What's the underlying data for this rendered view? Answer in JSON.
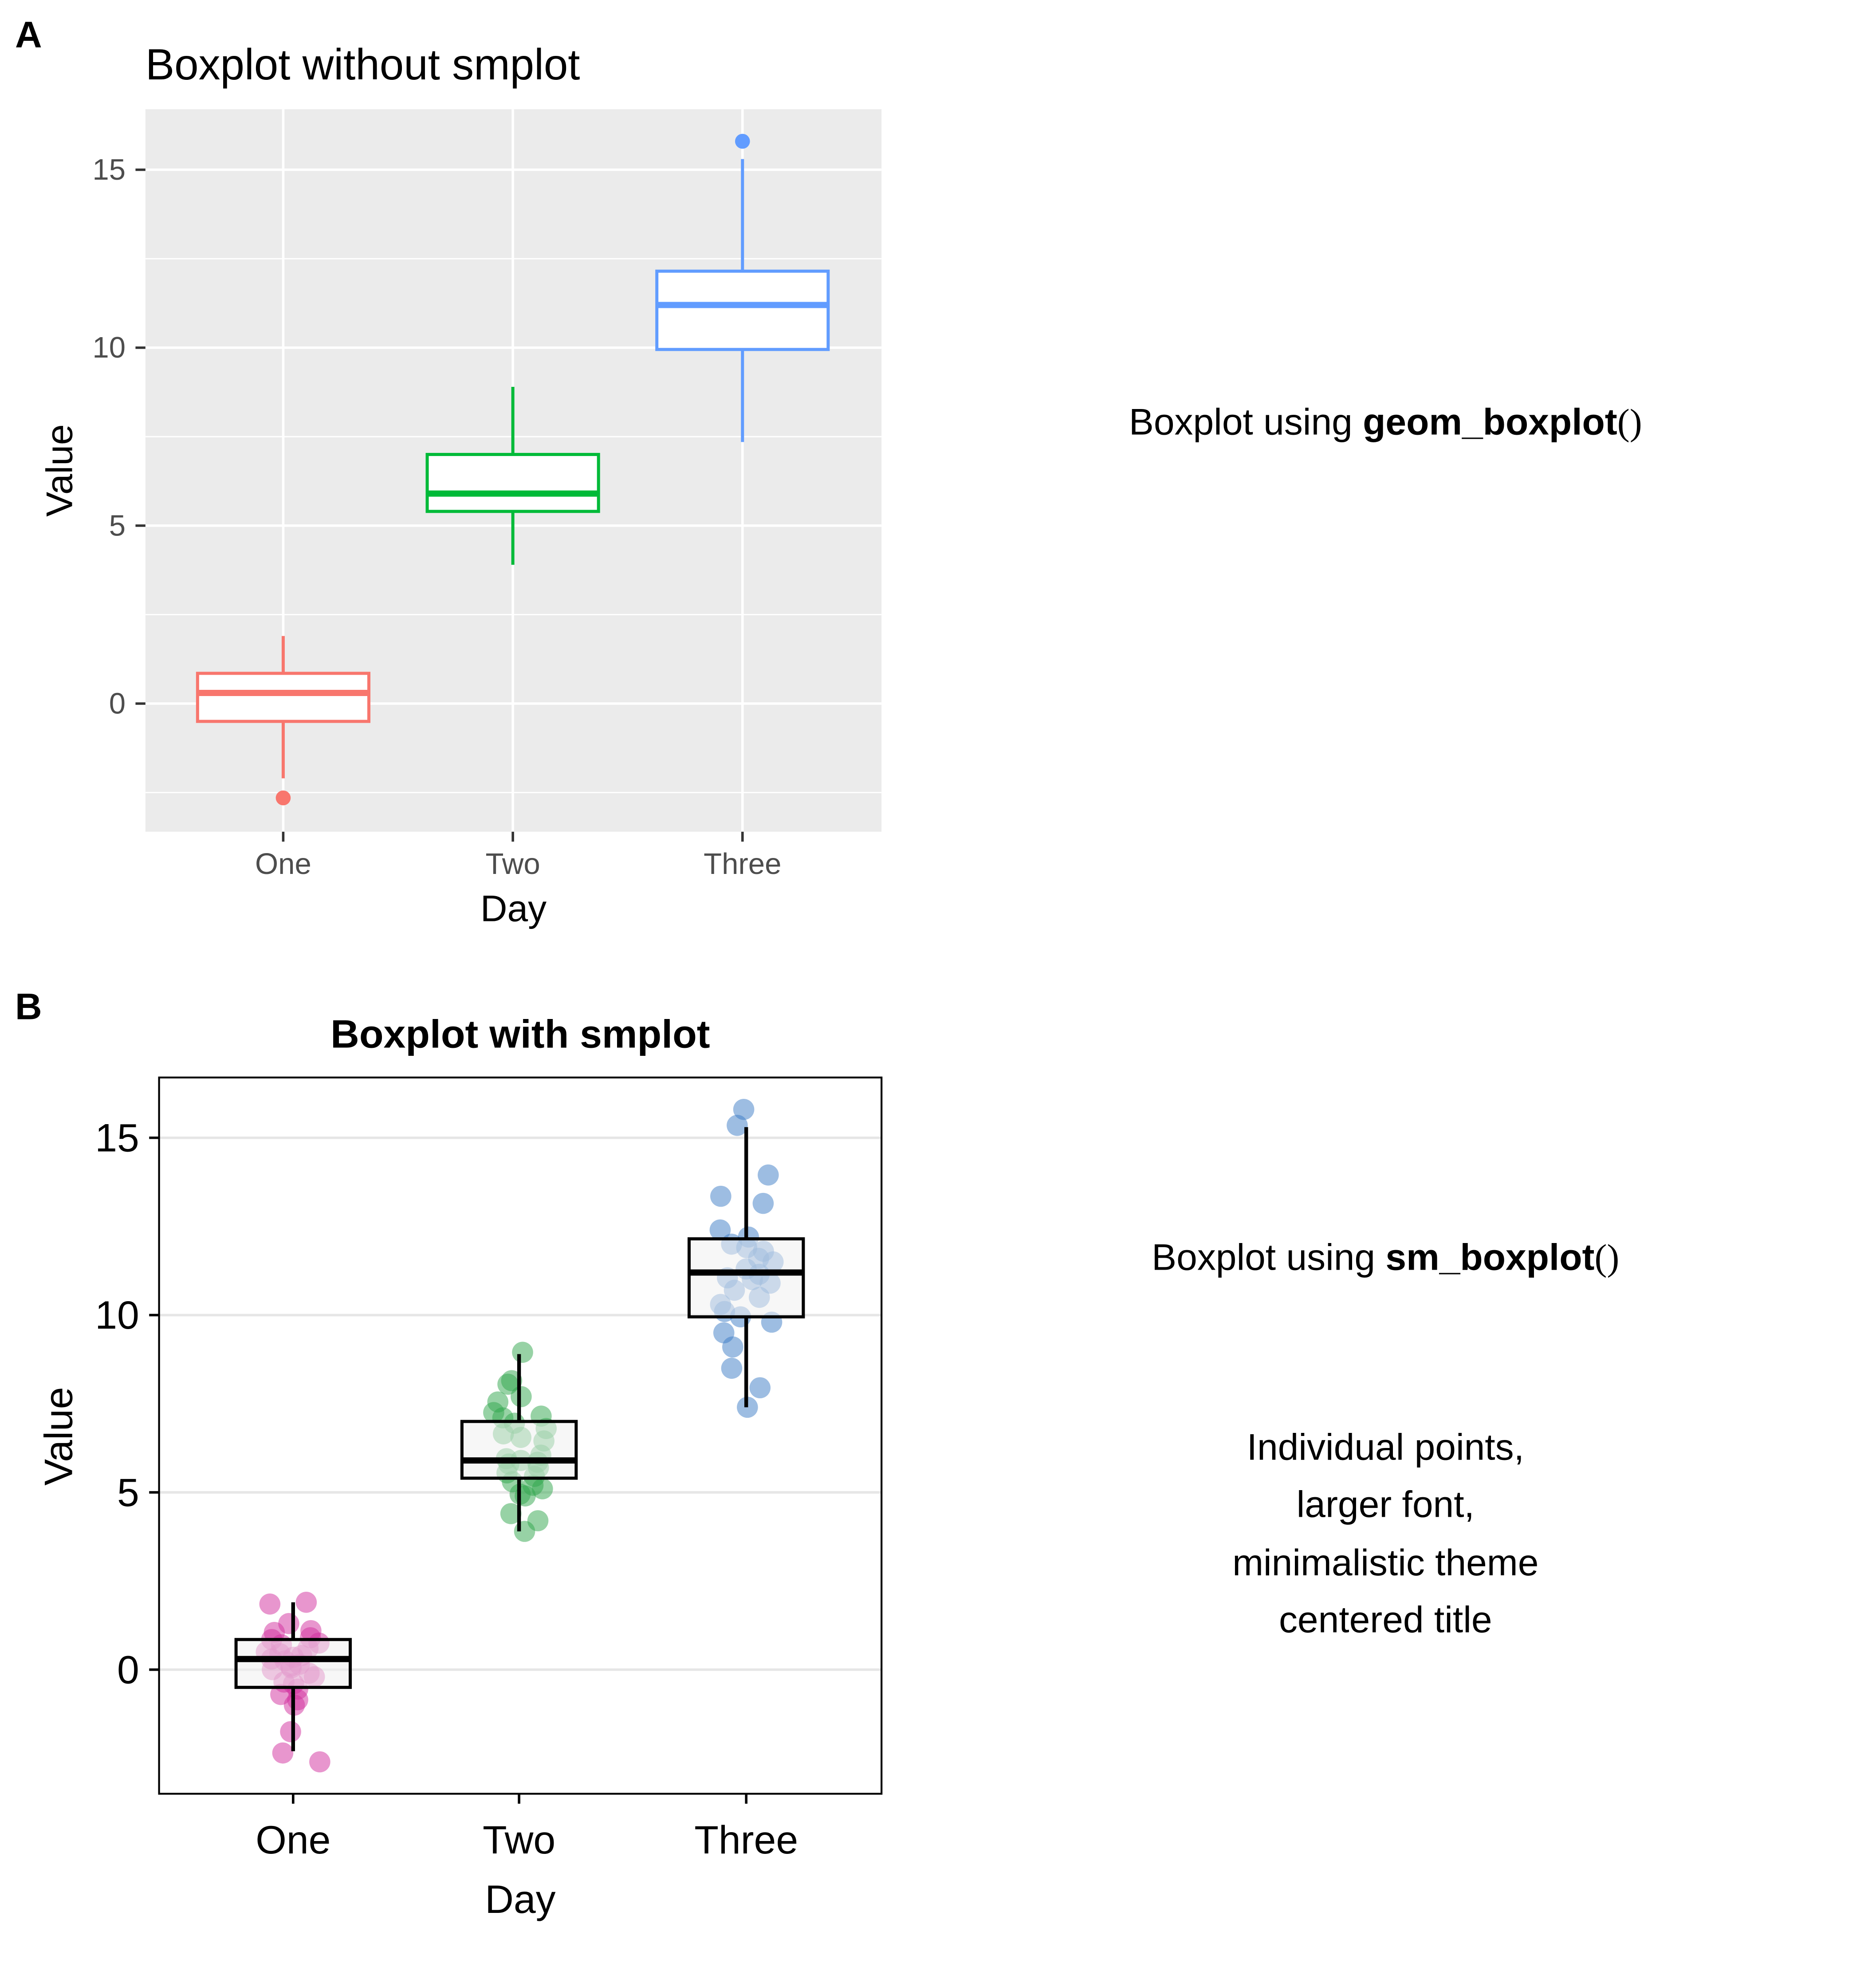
{
  "panel_a": {
    "label": "A",
    "description": [
      "Boxplot using ",
      "geom_boxplot",
      "()"
    ]
  },
  "panel_b": {
    "label": "B",
    "description": [
      "Boxplot using ",
      "sm_boxplot",
      "()"
    ],
    "notes": [
      "Individual points,",
      "larger font,",
      "minimalistic theme",
      "centered title"
    ]
  },
  "chart_data": [
    {
      "type": "boxplot",
      "title": "Boxplot without smplot",
      "xlabel": "Day",
      "ylabel": "Value",
      "categories": [
        "One",
        "Two",
        "Three"
      ],
      "yticks": [
        0,
        5,
        10,
        15
      ],
      "ylim": [
        -3.6,
        16.7
      ],
      "grid": true,
      "background": "#EBEBEB",
      "colors": [
        "#F8766D",
        "#00BA38",
        "#619CFF"
      ],
      "boxes": [
        {
          "category": "One",
          "whisker_low": -2.1,
          "q1": -0.5,
          "median": 0.3,
          "q3": 0.85,
          "whisker_high": 1.9,
          "outliers": [
            -2.65
          ]
        },
        {
          "category": "Two",
          "whisker_low": 3.9,
          "q1": 5.4,
          "median": 5.9,
          "q3": 7.0,
          "whisker_high": 8.9,
          "outliers": []
        },
        {
          "category": "Three",
          "whisker_low": 7.35,
          "q1": 9.95,
          "median": 11.2,
          "q3": 12.15,
          "whisker_high": 15.3,
          "outliers": [
            15.8
          ]
        }
      ]
    },
    {
      "type": "boxplot",
      "title": "Boxplot with smplot",
      "xlabel": "Day",
      "ylabel": "Value",
      "categories": [
        "One",
        "Two",
        "Three"
      ],
      "yticks": [
        0,
        5,
        10,
        15
      ],
      "ylim": [
        -3.5,
        16.7
      ],
      "grid": "horizontal",
      "background": "#FFFFFF",
      "colors": [
        "#D12E9E",
        "#30A64C",
        "#3B7BC6"
      ],
      "boxes": [
        {
          "category": "One",
          "whisker_low": -2.3,
          "q1": -0.5,
          "median": 0.3,
          "q3": 0.85,
          "whisker_high": 1.9
        },
        {
          "category": "Two",
          "whisker_low": 3.9,
          "q1": 5.4,
          "median": 5.9,
          "q3": 7.0,
          "whisker_high": 8.9
        },
        {
          "category": "Three",
          "whisker_low": 7.4,
          "q1": 9.95,
          "median": 11.2,
          "q3": 12.15,
          "whisker_high": 15.3
        }
      ],
      "points": [
        {
          "category": "One",
          "values": [
            1.9,
            1.85,
            1.3,
            1.1,
            1.05,
            0.9,
            0.85,
            0.75,
            0.7,
            0.6,
            0.5,
            0.45,
            0.4,
            0.35,
            0.3,
            0.25,
            0.15,
            0.1,
            0.05,
            0.0,
            -0.1,
            -0.2,
            -0.35,
            -0.4,
            -0.55,
            -0.7,
            -0.85,
            -1.0,
            -1.75,
            -2.35,
            -2.6
          ]
        },
        {
          "category": "Two",
          "values": [
            8.95,
            8.15,
            8.05,
            7.7,
            7.55,
            7.25,
            7.15,
            7.1,
            6.95,
            6.8,
            6.65,
            6.55,
            6.45,
            6.05,
            5.95,
            5.9,
            5.85,
            5.8,
            5.7,
            5.55,
            5.45,
            5.3,
            5.2,
            5.1,
            4.95,
            4.9,
            4.4,
            4.2,
            3.9
          ]
        },
        {
          "category": "Three",
          "values": [
            15.8,
            15.35,
            13.95,
            13.35,
            13.15,
            12.4,
            12.2,
            12.0,
            11.9,
            11.8,
            11.6,
            11.5,
            11.3,
            11.15,
            11.05,
            11.0,
            10.9,
            10.7,
            10.5,
            10.3,
            10.1,
            9.95,
            9.8,
            9.5,
            9.1,
            8.5,
            7.95,
            7.4
          ]
        }
      ]
    }
  ]
}
